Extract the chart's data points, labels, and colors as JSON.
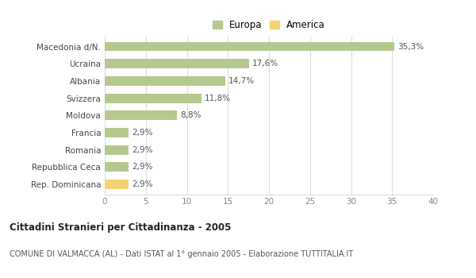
{
  "categories": [
    "Macedonia d/N.",
    "Ucraina",
    "Albania",
    "Svizzera",
    "Moldova",
    "Francia",
    "Romania",
    "Repubblica Ceca",
    "Rep. Dominicana"
  ],
  "values": [
    35.3,
    17.6,
    14.7,
    11.8,
    8.8,
    2.9,
    2.9,
    2.9,
    2.9
  ],
  "labels": [
    "35,3%",
    "17,6%",
    "14,7%",
    "11,8%",
    "8,8%",
    "2,9%",
    "2,9%",
    "2,9%",
    "2,9%"
  ],
  "colors": [
    "#b5c98e",
    "#b5c98e",
    "#b5c98e",
    "#b5c98e",
    "#b5c98e",
    "#b5c98e",
    "#b5c98e",
    "#b5c98e",
    "#f5d176"
  ],
  "europa_color": "#b5c98e",
  "america_color": "#f5d176",
  "title": "Cittadini Stranieri per Cittadinanza - 2005",
  "subtitle": "COMUNE DI VALMACCA (AL) - Dati ISTAT al 1° gennaio 2005 - Elaborazione TUTTITALIA.IT",
  "xlim": [
    0,
    40
  ],
  "xticks": [
    0,
    5,
    10,
    15,
    20,
    25,
    30,
    35,
    40
  ],
  "background_color": "#ffffff",
  "grid_color": "#dddddd"
}
